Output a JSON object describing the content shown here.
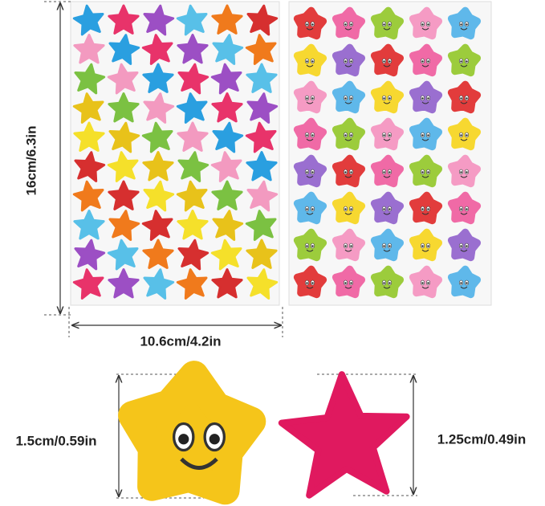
{
  "dimensions": {
    "sheet_height": "16cm/6.3in",
    "sheet_width": "10.6cm/4.2in",
    "smiley_star_size": "1.5cm/0.59in",
    "plain_star_size": "1.25cm/0.49in"
  }
}
